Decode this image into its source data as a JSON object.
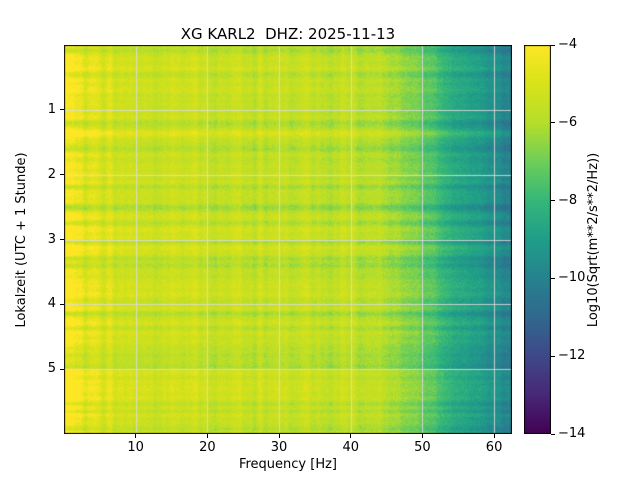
{
  "figure": {
    "title": "XG KARL2  DHZ: 2025-11-13",
    "xlabel": "Frequency [Hz]",
    "ylabel": "Lokalzeit (UTC + 1 Stunde)",
    "colorbar_label": "Log10(Sqrt(m**2/s**2/Hz))",
    "background": "#ffffff"
  },
  "chart_data": {
    "type": "heatmap",
    "title": "XG KARL2  DHZ: 2025-11-13",
    "xlabel": "Frequency [Hz]",
    "ylabel": "Lokalzeit (UTC + 1 Stunde)",
    "colorbar_label": "Log10(Sqrt(m**2/s**2/Hz))",
    "colormap": "viridis",
    "x_range_hz": [
      0,
      62.5
    ],
    "x_ticks": [
      10,
      20,
      30,
      40,
      50,
      60
    ],
    "y_range_hours": [
      0,
      6
    ],
    "y_ticks": [
      1,
      2,
      3,
      4,
      5
    ],
    "value_range": [
      -14,
      -4
    ],
    "colorbar_ticks": [
      -4,
      -6,
      -8,
      -10,
      -12,
      -14
    ],
    "grid": true,
    "grid_color": "#dcdcdc",
    "frequency_profile": {
      "freq_hz": [
        0.3,
        1,
        2,
        3,
        5,
        10,
        15,
        20,
        25,
        30,
        35,
        40,
        44,
        47,
        50,
        53,
        56,
        58,
        60,
        61.5,
        62.5
      ],
      "mean_log10": [
        -4.2,
        -4.45,
        -4.8,
        -5.0,
        -5.25,
        -5.45,
        -5.5,
        -5.55,
        -5.6,
        -5.65,
        -5.75,
        -5.85,
        -6.0,
        -6.5,
        -7.2,
        -8.2,
        -8.9,
        -9.2,
        -9.5,
        -9.9,
        -10.3
      ]
    },
    "bright_time_bands_hours": [
      0.35,
      1.15,
      1.95,
      3.05,
      4.05,
      4.65,
      5.7
    ],
    "viridis_colors": [
      "#440154",
      "#482878",
      "#3e4989",
      "#31688e",
      "#26828e",
      "#1f9e89",
      "#35b779",
      "#6ece58",
      "#b5de2b",
      "#d8e219",
      "#fde725"
    ]
  }
}
